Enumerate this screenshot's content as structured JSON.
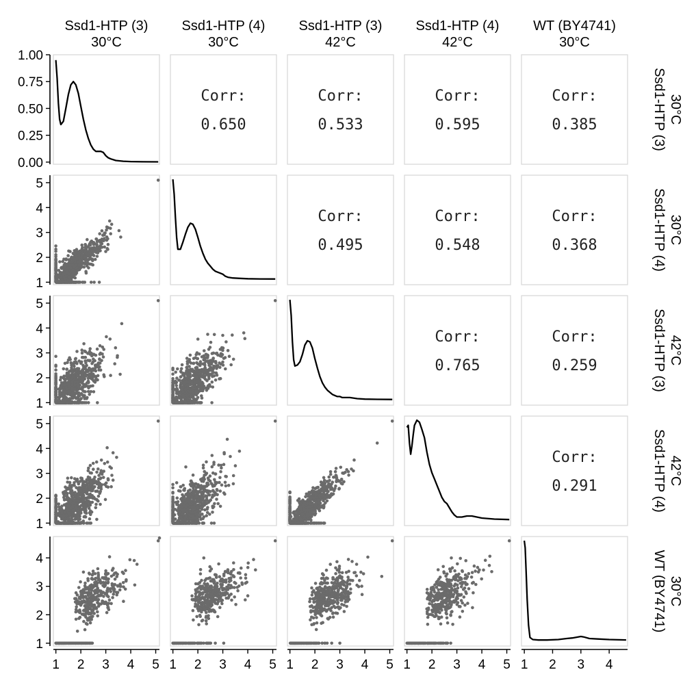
{
  "chart_data": {
    "type": "pairs",
    "variables": [
      {
        "line1": "Ssd1-HTP (3)",
        "line2": "30°C"
      },
      {
        "line1": "Ssd1-HTP (4)",
        "line2": "30°C"
      },
      {
        "line1": "Ssd1-HTP (3)",
        "line2": "42°C"
      },
      {
        "line1": "Ssd1-HTP (4)",
        "line2": "42°C"
      },
      {
        "line1": "WT (BY4741)",
        "line2": "30°C"
      }
    ],
    "correlation_label": "Corr:",
    "correlations": [
      {
        "row": 0,
        "col": 1,
        "value": "0.650"
      },
      {
        "row": 0,
        "col": 2,
        "value": "0.533"
      },
      {
        "row": 0,
        "col": 3,
        "value": "0.595"
      },
      {
        "row": 0,
        "col": 4,
        "value": "0.385"
      },
      {
        "row": 1,
        "col": 2,
        "value": "0.495"
      },
      {
        "row": 1,
        "col": 3,
        "value": "0.548"
      },
      {
        "row": 1,
        "col": 4,
        "value": "0.368"
      },
      {
        "row": 2,
        "col": 3,
        "value": "0.765"
      },
      {
        "row": 2,
        "col": 4,
        "value": "0.259"
      },
      {
        "row": 3,
        "col": 4,
        "value": "0.291"
      }
    ],
    "x_ticks": [
      "1",
      "2",
      "3",
      "4",
      "5"
    ],
    "x_ticks_last_col": [
      "1",
      "2",
      "3",
      "4"
    ],
    "density_y_ticks": [
      "0.00",
      "0.25",
      "0.50",
      "0.75",
      "1.00"
    ],
    "scatter_y_ticks": [
      "1",
      "2",
      "3",
      "4",
      "5"
    ],
    "scatter_y_ticks_last_row": [
      "1",
      "2",
      "3",
      "4"
    ],
    "x_range": [
      0.9,
      5.15
    ],
    "x_range_last": [
      0.9,
      4.65
    ],
    "density_ylim": [
      -0.02,
      1.0
    ],
    "density_curves": [
      {
        "x": [
          1.0,
          1.05,
          1.1,
          1.15,
          1.2,
          1.3,
          1.4,
          1.5,
          1.6,
          1.7,
          1.8,
          1.9,
          2.0,
          2.1,
          2.2,
          2.3,
          2.4,
          2.5,
          2.6,
          2.7,
          2.8,
          2.9,
          3.0,
          3.1,
          3.2,
          3.4,
          3.7,
          4.0,
          4.5,
          5.1
        ],
        "y": [
          0.95,
          0.78,
          0.55,
          0.4,
          0.35,
          0.38,
          0.5,
          0.63,
          0.72,
          0.75,
          0.72,
          0.64,
          0.52,
          0.4,
          0.3,
          0.22,
          0.16,
          0.12,
          0.1,
          0.1,
          0.1,
          0.09,
          0.06,
          0.04,
          0.03,
          0.015,
          0.008,
          0.005,
          0.003,
          0.002
        ]
      },
      {
        "x": [
          1.0,
          1.05,
          1.1,
          1.15,
          1.2,
          1.3,
          1.4,
          1.5,
          1.6,
          1.7,
          1.8,
          1.9,
          2.0,
          2.1,
          2.2,
          2.3,
          2.4,
          2.5,
          2.6,
          2.7,
          2.8,
          2.9,
          3.0,
          3.1,
          3.2,
          3.4,
          3.7,
          4.0,
          4.5,
          5.1
        ],
        "y": [
          1.0,
          0.85,
          0.62,
          0.42,
          0.3,
          0.3,
          0.37,
          0.45,
          0.52,
          0.56,
          0.55,
          0.5,
          0.42,
          0.33,
          0.26,
          0.2,
          0.16,
          0.13,
          0.1,
          0.08,
          0.07,
          0.06,
          0.05,
          0.03,
          0.02,
          0.012,
          0.008,
          0.005,
          0.003,
          0.002
        ]
      },
      {
        "x": [
          1.0,
          1.05,
          1.1,
          1.15,
          1.2,
          1.3,
          1.4,
          1.5,
          1.6,
          1.7,
          1.8,
          1.9,
          2.0,
          2.1,
          2.2,
          2.3,
          2.4,
          2.5,
          2.6,
          2.7,
          2.8,
          2.9,
          3.0,
          3.1,
          3.2,
          3.4,
          3.7,
          4.0,
          4.5,
          5.1
        ],
        "y": [
          0.95,
          0.8,
          0.55,
          0.38,
          0.32,
          0.33,
          0.36,
          0.43,
          0.52,
          0.56,
          0.55,
          0.49,
          0.39,
          0.3,
          0.22,
          0.16,
          0.12,
          0.09,
          0.07,
          0.05,
          0.04,
          0.03,
          0.03,
          0.02,
          0.02,
          0.02,
          0.01,
          0.005,
          0.003,
          0.002
        ]
      },
      {
        "x": [
          1.0,
          1.05,
          1.1,
          1.15,
          1.2,
          1.25,
          1.3,
          1.4,
          1.5,
          1.6,
          1.7,
          1.8,
          1.9,
          2.0,
          2.1,
          2.2,
          2.3,
          2.4,
          2.5,
          2.6,
          2.7,
          2.8,
          2.9,
          3.0,
          3.2,
          3.4,
          3.6,
          3.8,
          4.0,
          4.5,
          5.1
        ],
        "y": [
          0.9,
          0.92,
          0.75,
          0.64,
          0.72,
          0.83,
          0.92,
          0.97,
          0.95,
          0.88,
          0.8,
          0.66,
          0.54,
          0.46,
          0.4,
          0.34,
          0.28,
          0.22,
          0.18,
          0.16,
          0.12,
          0.08,
          0.05,
          0.03,
          0.03,
          0.04,
          0.04,
          0.03,
          0.02,
          0.01,
          0.005
        ]
      },
      {
        "x": [
          1.0,
          1.03,
          1.06,
          1.1,
          1.15,
          1.2,
          1.3,
          1.5,
          1.8,
          2.2,
          2.5,
          2.7,
          2.9,
          3.0,
          3.1,
          3.3,
          3.6,
          4.0,
          4.6
        ],
        "y": [
          0.97,
          0.9,
          0.7,
          0.4,
          0.15,
          0.03,
          0.01,
          0.005,
          0.005,
          0.01,
          0.02,
          0.025,
          0.035,
          0.04,
          0.035,
          0.02,
          0.015,
          0.01,
          0.006
        ]
      }
    ]
  }
}
